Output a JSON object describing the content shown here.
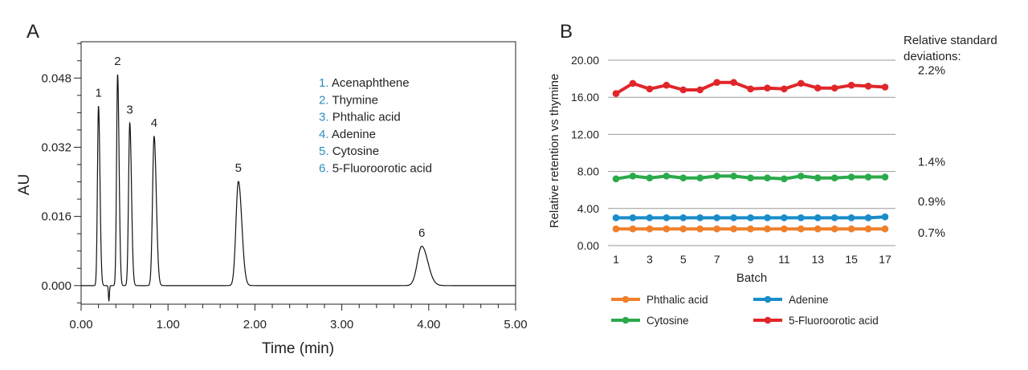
{
  "chart_data": [
    {
      "panel_label": "A",
      "type": "line",
      "xlabel": "Time (min)",
      "ylabel": "AU",
      "xlim": [
        0,
        5
      ],
      "ylim": [
        -0.0043,
        0.0564
      ],
      "xticks": [
        "0.00",
        "1.00",
        "2.00",
        "3.00",
        "4.00",
        "5.00"
      ],
      "yticks": [
        "0.000",
        "0.016",
        "0.032",
        "0.048"
      ],
      "grid": false,
      "peaks": [
        {
          "label": "1",
          "time": 0.2,
          "height": 0.0415,
          "width": 0.012
        },
        {
          "label": "2",
          "time": 0.42,
          "height": 0.0488,
          "width": 0.012
        },
        {
          "label": "3",
          "time": 0.56,
          "height": 0.0376,
          "width": 0.014
        },
        {
          "label": "4",
          "time": 0.84,
          "height": 0.0345,
          "width": 0.018
        },
        {
          "label": "5",
          "time": 1.81,
          "height": 0.0241,
          "width": 0.028
        },
        {
          "label": "6",
          "time": 3.92,
          "height": 0.0091,
          "width": 0.05
        }
      ],
      "dip": {
        "time": 0.32,
        "height": -0.0035
      },
      "legend_placement": "top-right",
      "legend": [
        {
          "num": "1.",
          "name": "Acenaphthene"
        },
        {
          "num": "2.",
          "name": "Thymine"
        },
        {
          "num": "3.",
          "name": "Phthalic acid"
        },
        {
          "num": "4.",
          "name": "Adenine"
        },
        {
          "num": "5.",
          "name": "Cytosine"
        },
        {
          "num": "6.",
          "name": "5-Fluoroorotic acid"
        }
      ],
      "legend_number_color": "#2a8fbf"
    },
    {
      "panel_label": "B",
      "type": "line",
      "xlabel": "Batch",
      "ylabel": "Relative retention vs thymine",
      "x": [
        1,
        2,
        3,
        4,
        5,
        6,
        7,
        8,
        9,
        10,
        11,
        12,
        13,
        14,
        15,
        16,
        17
      ],
      "xticks": [
        "1",
        "3",
        "5",
        "7",
        "9",
        "11",
        "13",
        "15",
        "17"
      ],
      "yticks": [
        "0.00",
        "4.00",
        "8.00",
        "12.00",
        "16.00",
        "20.00"
      ],
      "ylim": [
        0,
        20
      ],
      "grid": true,
      "legend_placement": "bottom",
      "rsd_title": "Relative standard deviations:",
      "series": [
        {
          "name": "Phthalic acid",
          "color": "#f07f2a",
          "rsd": "0.7%",
          "values": [
            1.8,
            1.8,
            1.8,
            1.8,
            1.8,
            1.8,
            1.8,
            1.8,
            1.8,
            1.8,
            1.8,
            1.8,
            1.8,
            1.8,
            1.8,
            1.8,
            1.8
          ]
        },
        {
          "name": "Adenine",
          "color": "#1a8cc9",
          "rsd": "0.9%",
          "values": [
            3.0,
            3.0,
            3.0,
            3.0,
            3.0,
            3.0,
            3.0,
            3.0,
            3.0,
            3.0,
            3.0,
            3.0,
            3.0,
            3.0,
            3.0,
            3.0,
            3.1
          ]
        },
        {
          "name": "Cytosine",
          "color": "#2aaa4a",
          "rsd": "1.4%",
          "values": [
            7.2,
            7.5,
            7.3,
            7.5,
            7.3,
            7.3,
            7.5,
            7.5,
            7.3,
            7.3,
            7.2,
            7.5,
            7.3,
            7.3,
            7.4,
            7.4,
            7.4
          ]
        },
        {
          "name": "5-Fluoroorotic acid",
          "color": "#e0262a",
          "rsd": "2.2%",
          "values": [
            16.4,
            17.5,
            16.9,
            17.3,
            16.8,
            16.8,
            17.6,
            17.6,
            16.9,
            17.0,
            16.9,
            17.5,
            17.0,
            17.0,
            17.3,
            17.2,
            17.1
          ]
        }
      ]
    }
  ]
}
